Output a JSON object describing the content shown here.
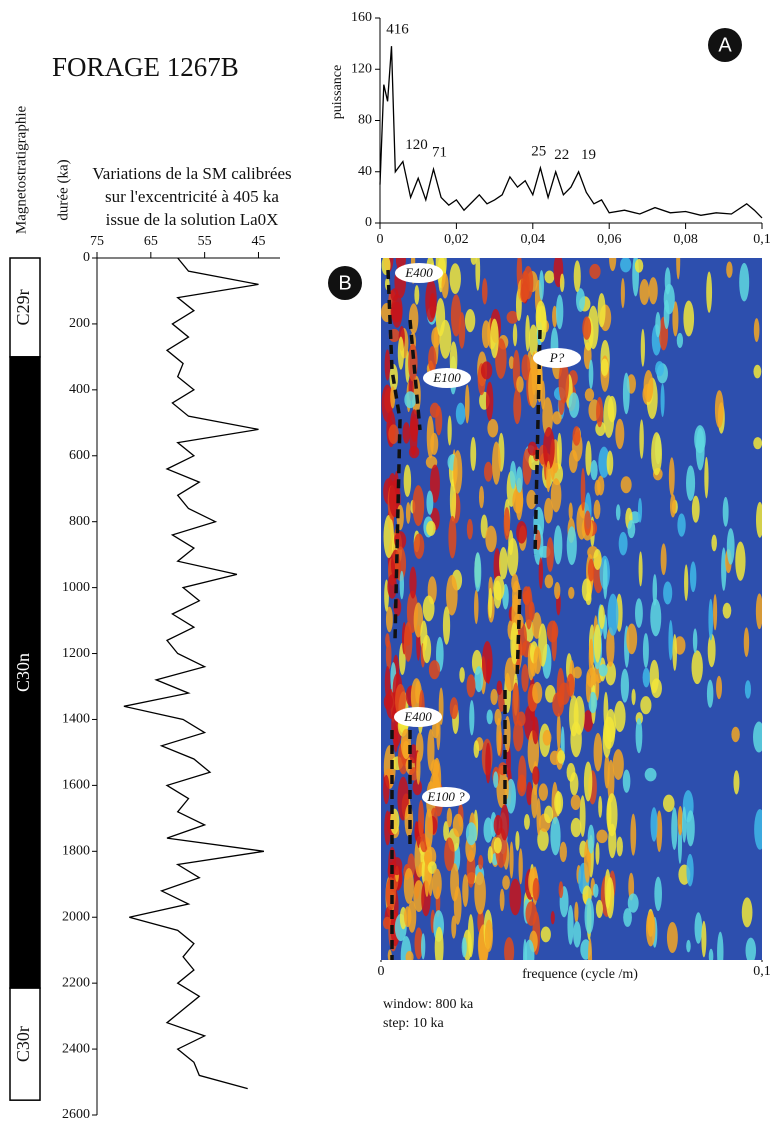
{
  "title": "FORAGE 1267B",
  "panel_a": "A",
  "panel_b": "B",
  "chart_data": [
    {
      "type": "line",
      "orientation": "vertical",
      "title": [
        "Variations de la SM calibrées",
        "sur l'excentricité à 405 ka",
        "issue de la solution La0X"
      ],
      "ylabel": "durée (ka)",
      "x": [
        0,
        40,
        80,
        120,
        160,
        200,
        240,
        280,
        320,
        360,
        400,
        440,
        480,
        520,
        560,
        600,
        640,
        680,
        720,
        760,
        800,
        840,
        880,
        920,
        960,
        1000,
        1040,
        1080,
        1120,
        1160,
        1200,
        1240,
        1280,
        1320,
        1360,
        1400,
        1440,
        1480,
        1520,
        1560,
        1600,
        1640,
        1680,
        1720,
        1760,
        1800,
        1840,
        1880,
        1920,
        1960,
        2000,
        2040,
        2080,
        2120,
        2160,
        2200,
        2240,
        2280,
        2320,
        2360,
        2400,
        2440,
        2480,
        2520
      ],
      "values": [
        60,
        58,
        45,
        60,
        57,
        61,
        58,
        62,
        59,
        60,
        57,
        61,
        58,
        45,
        60,
        57,
        62,
        56,
        60,
        58,
        53,
        61,
        57,
        60,
        49,
        59,
        56,
        61,
        57,
        62,
        60,
        55,
        64,
        58,
        70,
        59,
        55,
        63,
        57,
        54,
        62,
        58,
        60,
        55,
        62,
        44,
        60,
        56,
        63,
        58,
        69,
        60,
        57,
        59,
        57,
        60,
        56,
        59,
        62,
        55,
        60,
        57,
        56,
        47
      ],
      "xlim": [
        75,
        41
      ],
      "xticks": [
        75,
        65,
        55,
        45
      ],
      "ylim": [
        0,
        2600
      ],
      "yticks": [
        0,
        200,
        400,
        600,
        800,
        1000,
        1200,
        1400,
        1600,
        1800,
        2000,
        2200,
        2400,
        2600
      ],
      "color": "#000000"
    },
    {
      "type": "line",
      "ylabel": "puissance",
      "x": [
        0,
        0.001,
        0.002,
        0.003,
        0.004,
        0.006,
        0.008,
        0.01,
        0.012,
        0.014,
        0.016,
        0.018,
        0.02,
        0.022,
        0.024,
        0.026,
        0.028,
        0.03,
        0.032,
        0.034,
        0.036,
        0.038,
        0.04,
        0.042,
        0.044,
        0.046,
        0.048,
        0.05,
        0.052,
        0.054,
        0.056,
        0.058,
        0.06,
        0.064,
        0.068,
        0.072,
        0.076,
        0.08,
        0.084,
        0.088,
        0.092,
        0.096,
        0.098,
        0.1
      ],
      "values": [
        30,
        108,
        95,
        138,
        40,
        48,
        20,
        35,
        18,
        42,
        20,
        14,
        18,
        10,
        16,
        22,
        15,
        18,
        22,
        36,
        28,
        33,
        22,
        43,
        20,
        40,
        22,
        28,
        40,
        24,
        15,
        18,
        8,
        10,
        7,
        12,
        8,
        9,
        6,
        8,
        7,
        15,
        10,
        4
      ],
      "xlim": [
        0,
        0.1
      ],
      "xticks": [
        0,
        {
          "value": 0.02,
          "label": "0,02"
        },
        {
          "value": 0.04,
          "label": "0,04"
        },
        {
          "value": 0.06,
          "label": "0,06"
        },
        {
          "value": 0.08,
          "label": "0,08"
        },
        {
          "value": 0.1,
          "label": "0,1"
        }
      ],
      "ylim": [
        0,
        160
      ],
      "yticks": [
        0,
        40,
        80,
        120,
        160
      ],
      "color": "#000000",
      "annotations": [
        {
          "text": "416",
          "x": 0.003,
          "y": 138
        },
        {
          "text": "120",
          "x": 0.008,
          "y": 48
        },
        {
          "text": "71",
          "x": 0.014,
          "y": 42
        },
        {
          "text": "25",
          "x": 0.04,
          "y": 43
        },
        {
          "text": "22",
          "x": 0.046,
          "y": 40
        },
        {
          "text": "19",
          "x": 0.053,
          "y": 40
        }
      ]
    },
    {
      "type": "column",
      "title": "Magnetostratigraphie",
      "chrons": [
        {
          "name": "C29r",
          "from": 0,
          "to": 300,
          "color": "#ffffff"
        },
        {
          "name": "C30n",
          "from": 300,
          "to": 2215,
          "color": "#000000"
        },
        {
          "name": "C30r",
          "from": 2215,
          "to": 2555,
          "color": "#ffffff"
        }
      ]
    },
    {
      "type": "heatmap",
      "xlabel": "frequence (cycle /m)",
      "xlim": [
        0,
        0.1
      ],
      "xticks": [
        0,
        {
          "value": 0.1,
          "label": "0,1"
        }
      ],
      "annotations": [
        "E400",
        "E100",
        "P?",
        "E400",
        "E100 ?"
      ],
      "notes": [
        "window: 800 ka",
        "step: 10 ka"
      ]
    }
  ]
}
